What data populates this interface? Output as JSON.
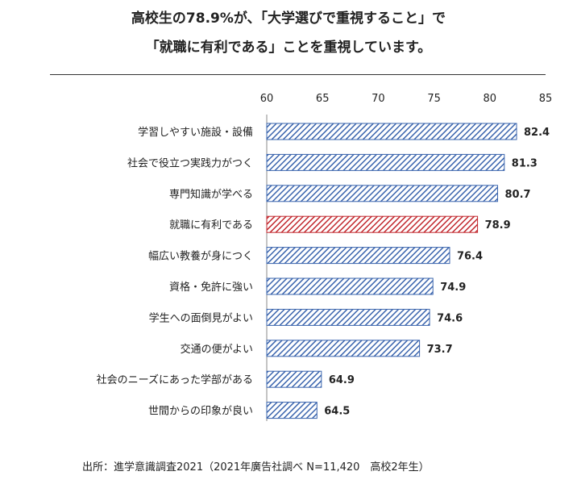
{
  "title_line1": "高校生の78.9%が、「大学選びで重視すること」で",
  "title_line2": "「就職に有利である」ことを重視しています。",
  "source": "出所：進学意識調査2021（2021年廣告社調べ N=11,420　高校2年生）",
  "colors": {
    "bar": "#3a64ad",
    "highlight": "#c1272d"
  },
  "chart_data": {
    "type": "bar",
    "orientation": "horizontal",
    "title": "",
    "xlabel": "",
    "ylabel": "",
    "xlim": [
      60,
      85
    ],
    "ticks": [
      60,
      65,
      70,
      75,
      80,
      85
    ],
    "categories": [
      "学習しやすい施設・設備",
      "社会で役立つ実践力がつく",
      "専門知識が学べる",
      "就職に有利である",
      "幅広い教養が身につく",
      "資格・免許に強い",
      "学生への面倒見がよい",
      "交通の便がよい",
      "社会のニーズにあった学部がある",
      "世間からの印象が良い"
    ],
    "values": [
      82.4,
      81.3,
      80.7,
      78.9,
      76.4,
      74.9,
      74.6,
      73.7,
      64.9,
      64.5
    ],
    "value_labels": [
      "82.4",
      "81.3",
      "80.7",
      "78.9",
      "76.4",
      "74.9",
      "74.6",
      "73.7",
      "64.9",
      "64.5"
    ],
    "highlight_index": 3,
    "fill_pattern": "diagonal-hatch"
  }
}
